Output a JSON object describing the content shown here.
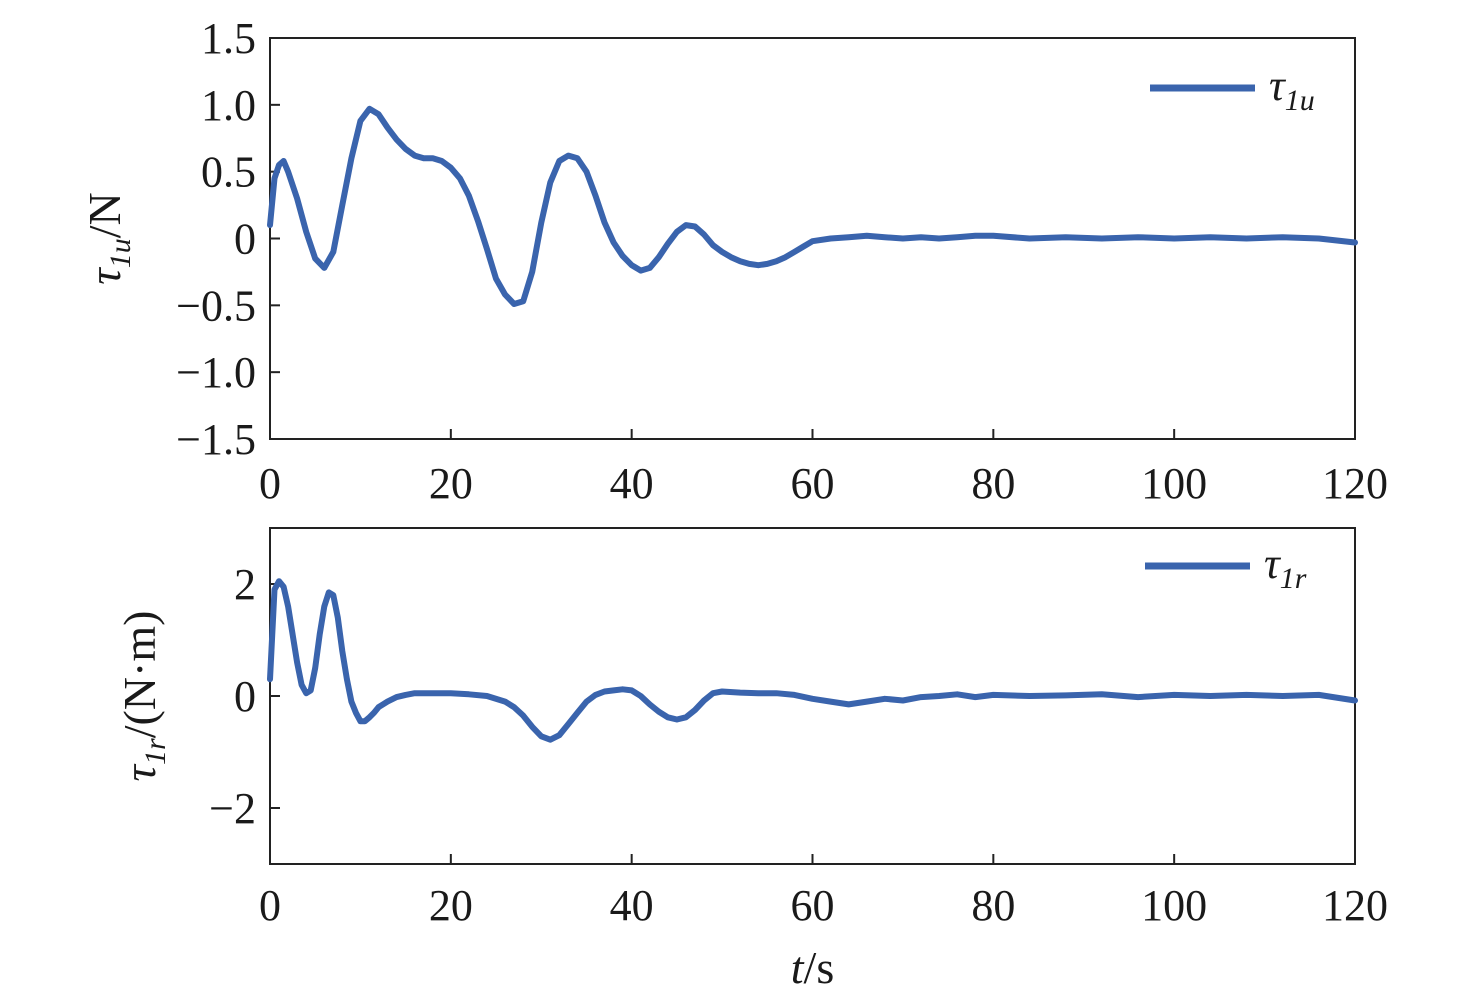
{
  "chart_data": [
    {
      "type": "line",
      "xlim": [
        0,
        120
      ],
      "ylim": [
        -1.5,
        1.5
      ],
      "x_ticks": [
        "0",
        "20",
        "40",
        "60",
        "80",
        "100",
        "120"
      ],
      "y_ticks": [
        "1.5",
        "1.0",
        "0.5",
        "0",
        "−0.5",
        "−1.0",
        "−1.5"
      ],
      "ylabel": {
        "symbol": "τ",
        "subscript": "1u",
        "unit": "/N"
      },
      "legend_position": "top-right",
      "grid": false,
      "series": [
        {
          "name": "τ1u",
          "legend": {
            "symbol": "τ",
            "subscript": "1u"
          },
          "color": "#3a64ad",
          "x": [
            0,
            0.5,
            1,
            1.5,
            2,
            3,
            4,
            5,
            6,
            7,
            8,
            9,
            10,
            11,
            12,
            13,
            14,
            15,
            16,
            17,
            18,
            19,
            20,
            21,
            22,
            23,
            24,
            25,
            26,
            27,
            28,
            29,
            30,
            31,
            32,
            33,
            34,
            35,
            36,
            37,
            38,
            39,
            40,
            41,
            42,
            43,
            44,
            45,
            46,
            47,
            48,
            49,
            50,
            51,
            52,
            53,
            54,
            55,
            56,
            57,
            58,
            59,
            60,
            62,
            64,
            66,
            68,
            70,
            72,
            74,
            76,
            78,
            80,
            84,
            88,
            92,
            96,
            100,
            104,
            108,
            112,
            116,
            120
          ],
          "y": [
            0.1,
            0.45,
            0.55,
            0.58,
            0.5,
            0.3,
            0.05,
            -0.15,
            -0.22,
            -0.1,
            0.25,
            0.6,
            0.88,
            0.97,
            0.93,
            0.83,
            0.74,
            0.67,
            0.62,
            0.6,
            0.6,
            0.58,
            0.53,
            0.45,
            0.32,
            0.13,
            -0.08,
            -0.3,
            -0.42,
            -0.49,
            -0.47,
            -0.25,
            0.12,
            0.42,
            0.58,
            0.62,
            0.6,
            0.5,
            0.32,
            0.12,
            -0.03,
            -0.13,
            -0.2,
            -0.24,
            -0.22,
            -0.14,
            -0.04,
            0.05,
            0.1,
            0.09,
            0.03,
            -0.05,
            -0.1,
            -0.14,
            -0.17,
            -0.19,
            -0.2,
            -0.19,
            -0.17,
            -0.14,
            -0.1,
            -0.06,
            -0.02,
            0.0,
            0.01,
            0.02,
            0.01,
            0.0,
            0.01,
            0.0,
            0.01,
            0.02,
            0.02,
            0.0,
            0.01,
            0.0,
            0.01,
            0.0,
            0.01,
            0.0,
            0.01,
            0.0,
            -0.03
          ]
        }
      ]
    },
    {
      "type": "line",
      "xlim": [
        0,
        120
      ],
      "ylim": [
        -3,
        3
      ],
      "x_ticks": [
        "0",
        "20",
        "40",
        "60",
        "80",
        "100",
        "120"
      ],
      "y_ticks": [
        "2",
        "0",
        "−2"
      ],
      "ylabel": {
        "symbol": "τ",
        "subscript": "1r",
        "unit": "/(N·m)"
      },
      "xlabel": {
        "symbol": "t",
        "unit": "/s"
      },
      "legend_position": "top-right",
      "grid": false,
      "series": [
        {
          "name": "τ1r",
          "legend": {
            "symbol": "τ",
            "subscript": "1r"
          },
          "color": "#3a64ad",
          "x": [
            0,
            0.5,
            1,
            1.5,
            2,
            2.5,
            3,
            3.5,
            4,
            4.5,
            5,
            5.5,
            6,
            6.5,
            7,
            7.5,
            8,
            8.5,
            9,
            9.5,
            10,
            10.5,
            11,
            11.5,
            12,
            13,
            14,
            15,
            16,
            18,
            20,
            22,
            24,
            26,
            27,
            28,
            29,
            30,
            31,
            32,
            33,
            34,
            35,
            36,
            37,
            38,
            39,
            40,
            41,
            42,
            43,
            44,
            45,
            46,
            47,
            48,
            49,
            50,
            52,
            54,
            56,
            58,
            60,
            62,
            64,
            66,
            68,
            70,
            72,
            74,
            76,
            78,
            80,
            84,
            88,
            92,
            96,
            100,
            104,
            108,
            112,
            116,
            120
          ],
          "y": [
            0.3,
            1.9,
            2.05,
            1.95,
            1.6,
            1.1,
            0.6,
            0.2,
            0.05,
            0.1,
            0.5,
            1.1,
            1.6,
            1.85,
            1.8,
            1.4,
            0.8,
            0.3,
            -0.1,
            -0.3,
            -0.45,
            -0.45,
            -0.38,
            -0.3,
            -0.2,
            -0.1,
            -0.02,
            0.02,
            0.05,
            0.05,
            0.05,
            0.03,
            0.0,
            -0.1,
            -0.2,
            -0.35,
            -0.55,
            -0.72,
            -0.78,
            -0.7,
            -0.5,
            -0.3,
            -0.1,
            0.02,
            0.08,
            0.1,
            0.12,
            0.1,
            0.0,
            -0.15,
            -0.28,
            -0.38,
            -0.42,
            -0.38,
            -0.25,
            -0.08,
            0.05,
            0.08,
            0.06,
            0.05,
            0.05,
            0.02,
            -0.05,
            -0.1,
            -0.15,
            -0.1,
            -0.05,
            -0.08,
            -0.02,
            0.0,
            0.03,
            -0.02,
            0.02,
            0.0,
            0.01,
            0.03,
            -0.02,
            0.02,
            0.0,
            0.02,
            0.0,
            0.02,
            -0.08
          ]
        }
      ]
    }
  ]
}
